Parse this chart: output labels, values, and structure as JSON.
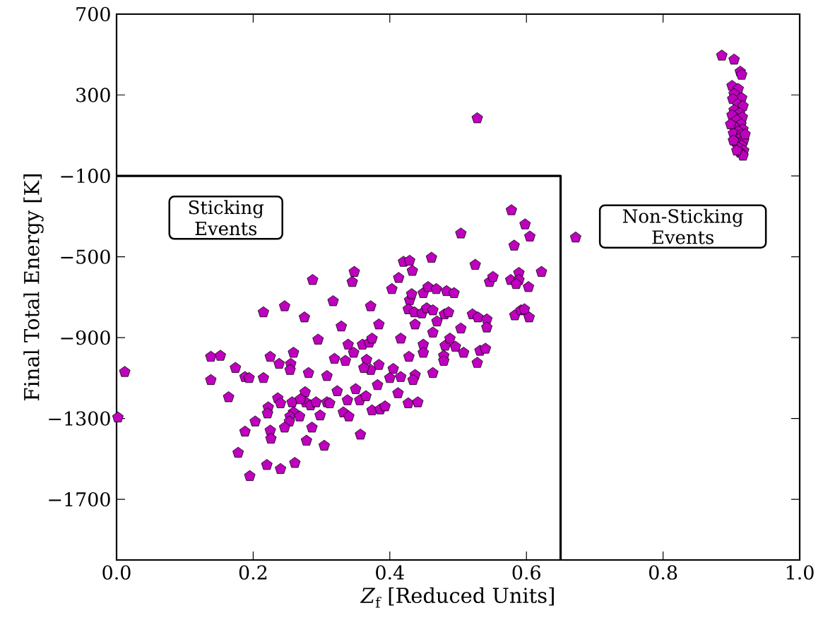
{
  "chart_data": {
    "type": "scatter",
    "xlabel": "*Z*$_{f}$ [Reduced Units]",
    "ylabel": "Final Total Energy [K]",
    "xlim": [
      0,
      1
    ],
    "ylim": [
      -2000,
      700
    ],
    "xticks": [
      {
        "value": 0,
        "label": "0.0"
      },
      0.2,
      0.4,
      0.6,
      0.8,
      {
        "value": 1,
        "label": "1.0"
      }
    ],
    "yticks": [
      {
        "value": -1700,
        "label": "−1700"
      },
      {
        "value": -1300,
        "label": "−1300"
      },
      {
        "value": -900,
        "label": "−900"
      },
      {
        "value": -500,
        "label": "−500"
      },
      {
        "value": -100,
        "label": "−100"
      },
      300,
      700
    ],
    "grid": false,
    "annotations": [
      "Sticking Events",
      "Non-Sticking Events"
    ],
    "series": [
      {
        "type": "line",
        "color": "#000000",
        "line_style": "solid",
        "marker": "none",
        "x": [
          0,
          0.65,
          0.65
        ],
        "values": [
          -100,
          -100,
          -2000
        ]
      },
      {
        "color": "#bf00bf",
        "x": [
          0.002,
          0.012,
          0.138,
          0.152,
          0.138,
          0.174,
          0.188,
          0.194,
          0.215,
          0.164,
          0.215,
          0.246,
          0.275,
          0.287,
          0.317,
          0.295,
          0.225,
          0.238,
          0.255,
          0.259,
          0.254,
          0.281,
          0.308,
          0.319,
          0.236,
          0.24,
          0.222,
          0.221,
          0.257,
          0.276,
          0.277,
          0.284,
          0.292,
          0.308,
          0.312,
          0.323,
          0.259,
          0.254,
          0.268,
          0.253,
          0.246,
          0.298,
          0.286,
          0.203,
          0.188,
          0.225,
          0.226,
          0.278,
          0.304,
          0.178,
          0.22,
          0.24,
          0.261,
          0.195,
          0.269,
          0.338,
          0.35,
          0.356,
          0.365,
          0.374,
          0.386,
          0.393,
          0.382,
          0.412,
          0.427,
          0.441,
          0.332,
          0.34,
          0.357,
          0.329,
          0.335,
          0.339,
          0.347,
          0.36,
          0.37,
          0.374,
          0.366,
          0.372,
          0.362,
          0.384,
          0.405,
          0.416,
          0.4,
          0.437,
          0.434,
          0.463,
          0.428,
          0.449,
          0.449,
          0.416,
          0.463,
          0.481,
          0.488,
          0.496,
          0.508,
          0.479,
          0.479,
          0.532,
          0.54,
          0.528,
          0.384,
          0.372,
          0.345,
          0.348,
          0.403,
          0.413,
          0.42,
          0.429,
          0.433,
          0.461,
          0.504,
          0.429,
          0.432,
          0.449,
          0.456,
          0.468,
          0.483,
          0.494,
          0.427,
          0.436,
          0.447,
          0.454,
          0.463,
          0.48,
          0.486,
          0.469,
          0.437,
          0.504,
          0.525,
          0.521,
          0.529,
          0.542,
          0.542,
          0.546,
          0.551,
          0.578,
          0.598,
          0.605,
          0.582,
          0.622,
          0.577,
          0.589,
          0.589,
          0.585,
          0.603,
          0.583,
          0.592,
          0.597,
          0.604,
          0.528,
          0.672,
          0.886,
          0.904,
          0.913,
          0.915,
          0.901,
          0.91,
          0.904,
          0.915,
          0.902,
          0.909,
          0.917,
          0.904,
          0.912,
          0.901,
          0.916,
          0.908,
          0.914,
          0.904,
          0.917,
          0.91,
          0.903,
          0.915,
          0.912,
          0.918,
          0.906,
          0.915,
          0.91,
          0.918,
          0.913,
          0.917,
          0.908,
          0.903,
          0.899,
          0.92
        ],
        "values": [
          -1295,
          -1070,
          -995,
          -990,
          -1110,
          -1050,
          -1095,
          -1100,
          -1100,
          -1195,
          -775,
          -745,
          -800,
          -615,
          -720,
          -910,
          -995,
          -1030,
          -1030,
          -975,
          -1060,
          -1075,
          -1090,
          -1005,
          -1200,
          -1225,
          -1245,
          -1275,
          -1220,
          -1170,
          -1220,
          -1235,
          -1220,
          -1220,
          -1225,
          -1165,
          -1270,
          -1290,
          -1290,
          -1315,
          -1345,
          -1285,
          -1345,
          -1315,
          -1365,
          -1360,
          -1400,
          -1410,
          -1435,
          -1470,
          -1530,
          -1550,
          -1520,
          -1585,
          -1205,
          -1210,
          -1155,
          -1210,
          -1190,
          -1260,
          -1255,
          -1240,
          -1135,
          -1175,
          -1225,
          -1220,
          -1270,
          -1290,
          -1380,
          -845,
          -1015,
          -935,
          -975,
          -935,
          -925,
          -905,
          -1010,
          -1060,
          -1050,
          -1035,
          -1055,
          -1095,
          -1100,
          -1085,
          -1110,
          -1075,
          -995,
          -935,
          -975,
          -905,
          -875,
          -940,
          -905,
          -945,
          -975,
          -990,
          -1015,
          -965,
          -955,
          -1025,
          -835,
          -745,
          -625,
          -575,
          -660,
          -605,
          -525,
          -520,
          -570,
          -505,
          -385,
          -715,
          -685,
          -680,
          -650,
          -660,
          -670,
          -680,
          -760,
          -775,
          -780,
          -755,
          -765,
          -785,
          -775,
          -820,
          -835,
          -855,
          -540,
          -785,
          -800,
          -810,
          -850,
          -625,
          -600,
          -270,
          -340,
          -400,
          -445,
          -575,
          -615,
          -580,
          -615,
          -635,
          -650,
          -790,
          -765,
          -760,
          -800,
          185,
          -405,
          495,
          475,
          415,
          400,
          345,
          330,
          305,
          285,
          280,
          255,
          245,
          225,
          210,
          200,
          190,
          175,
          155,
          145,
          130,
          120,
          110,
          105,
          85,
          75,
          70,
          50,
          40,
          25,
          15,
          0,
          25,
          75,
          155,
          105
        ]
      }
    ]
  }
}
